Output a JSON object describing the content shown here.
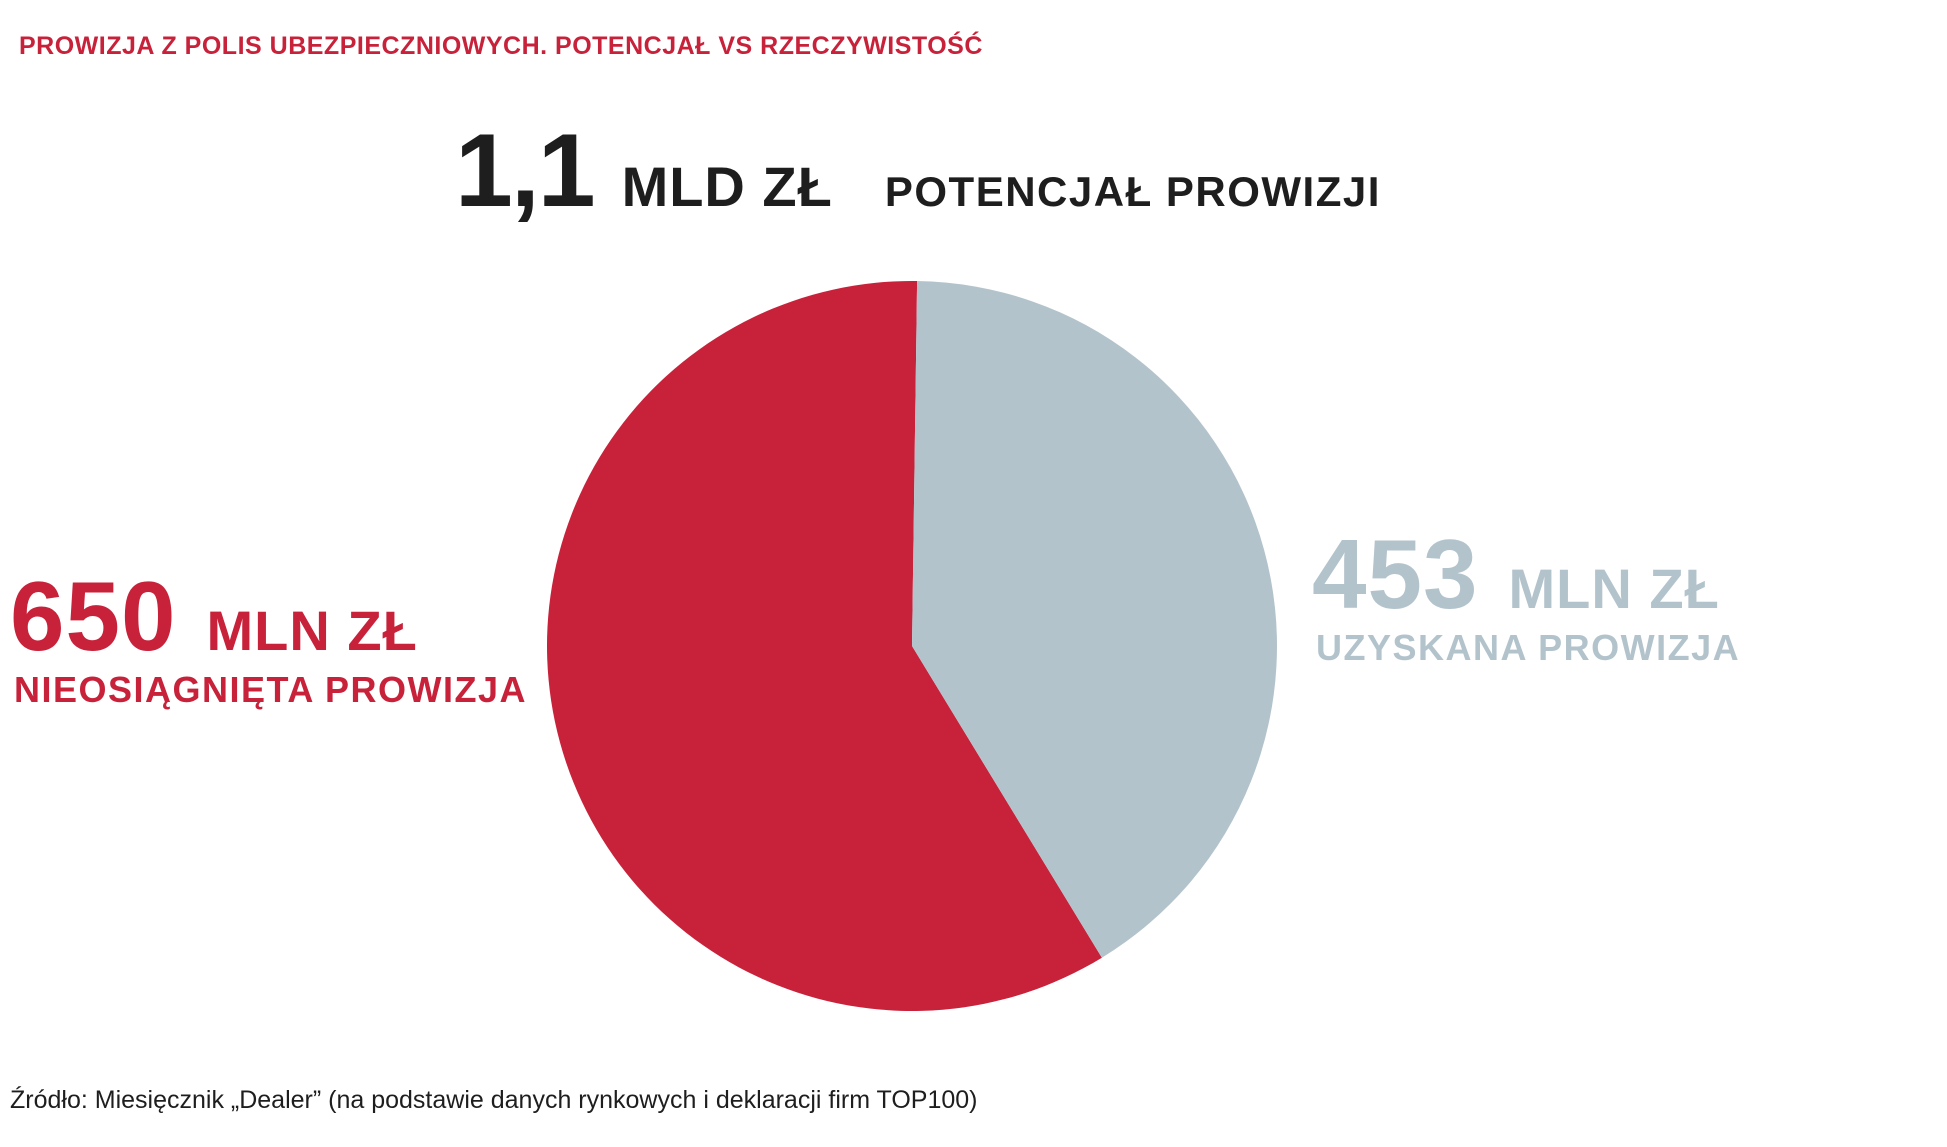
{
  "chart_data": {
    "type": "pie",
    "title": "PROWIZJA Z POLIS UBEZPIECZNIOWYCH. POTENCJAŁ VS RZECZYWISTOŚĆ",
    "total": {
      "value": "1,1",
      "unit": "MLD ZŁ",
      "label": "POTENCJAŁ PROWIZJI"
    },
    "slices": [
      {
        "name": "NIEOSIĄGNIĘTA PROWIZJA",
        "value": 650,
        "value_text": "650",
        "unit": "MLN ZŁ",
        "color": "#c8223b"
      },
      {
        "name": "UZYSKANA PROWIZJA",
        "value": 453,
        "value_text": "453",
        "unit": "MLN ZŁ",
        "color": "#b3c3cc"
      }
    ],
    "source": "Źródło: Miesięcznik „Dealer” (na podstawie danych rynkowych i deklaracji firm TOP100)"
  }
}
